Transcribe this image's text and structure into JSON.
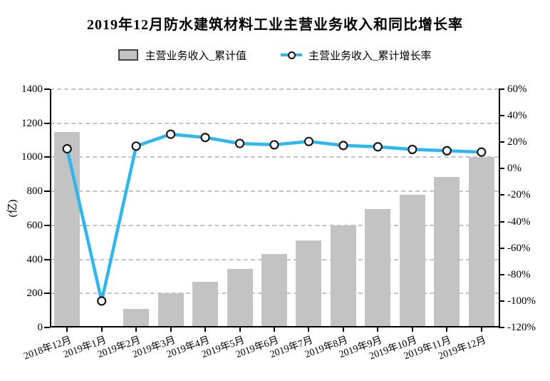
{
  "title": "2019年12月防水建筑材料工业主营业务收入和同比增长率",
  "legend": {
    "bar_label": "主营业务收入_累计值",
    "line_label": "主营业务收入_累计增长率"
  },
  "chart_data": {
    "type": "bar+line",
    "categories": [
      "2018年12月",
      "2019年1月",
      "2019年2月",
      "2019年3月",
      "2019年4月",
      "2019年5月",
      "2019年6月",
      "2019年7月",
      "2019年8月",
      "2019年9月",
      "2019年10月",
      "2019年11月",
      "2019年12月"
    ],
    "series": [
      {
        "name": "主营业务收入_累计值",
        "type": "bar",
        "axis": "left",
        "unit": "亿元",
        "values": [
          1150,
          null,
          110,
          200,
          270,
          345,
          430,
          510,
          600,
          695,
          780,
          885,
          1000
        ]
      },
      {
        "name": "主营业务收入_累计增长率",
        "type": "line",
        "axis": "right",
        "unit": "%",
        "values": [
          15,
          -100,
          17,
          26,
          23.5,
          19,
          18,
          20.5,
          17.5,
          16.5,
          14.5,
          13.5,
          12.5
        ]
      }
    ],
    "left_axis": {
      "label": "(亿)",
      "min": 0,
      "max": 1400,
      "step": 200
    },
    "right_axis": {
      "min": -120,
      "max": 60,
      "step": 20,
      "suffix": "%"
    },
    "grid": "horizontal-dashed",
    "legend_position": "top"
  },
  "colors": {
    "bar": "#c3c3c3",
    "line": "#2bb8f0",
    "marker_fill": "#ffffff",
    "marker_stroke": "#1a1a1a",
    "grid": "#c4c4c4",
    "axis": "#000000",
    "text": "#000000",
    "background": "#ffffff"
  }
}
